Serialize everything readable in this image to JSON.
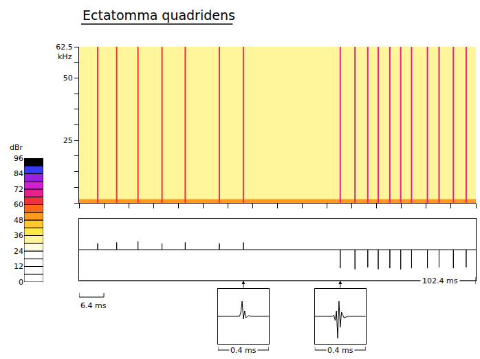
{
  "chart_data": {
    "type": "spectrogram",
    "title": "Ectatomma quadridens",
    "y_label": "kHz",
    "xlim": [
      0,
      102.4
    ],
    "xticks": [
      0,
      6.4,
      12.8,
      19.2,
      25.6,
      32,
      38.4,
      44.8,
      51.2,
      57.6,
      64,
      70.4,
      76.8,
      83.2,
      89.6,
      96,
      102.4
    ],
    "ylim": [
      0,
      62.5
    ],
    "yticks": [
      25,
      50,
      62.5
    ],
    "yminor_ticks": [
      0,
      6.25,
      12.5,
      18.75,
      31.25,
      37.5,
      43.75,
      56.25
    ],
    "tick_labels": "y",
    "clicks_ms": [
      4.8,
      9.7,
      15.2,
      21.4,
      27.4,
      36.2,
      42.4,
      67.4,
      71.2,
      74.5,
      77.2,
      80.2,
      83.0,
      85.8,
      89.9,
      92.9,
      96.6,
      99.9
    ],
    "levels_dBr": [
      60,
      60,
      60,
      60,
      60,
      60,
      60,
      66,
      66,
      66,
      66,
      66,
      66,
      66,
      66,
      66,
      66,
      66
    ],
    "background_level_dBr": 30,
    "low_band": {
      "top_khz": 1.5,
      "level_dBr": 48
    },
    "color_scale": {
      "label": "dBr",
      "bands": [
        0,
        6,
        12,
        18,
        24,
        30,
        36,
        42,
        48,
        54,
        60,
        66,
        72,
        78,
        84,
        90,
        96
      ],
      "colors": [
        "#ffffff",
        "#ffffff",
        "#ffffff",
        "#ffffff",
        "#fffde0",
        "#fff59a",
        "#ffe84a",
        "#ffc830",
        "#ff9a20",
        "#ff6a1a",
        "#f0303a",
        "#e8208c",
        "#d020d0",
        "#9a20e0",
        "#3a3af0",
        "#000000"
      ],
      "ylim": [
        0,
        96
      ],
      "yticks": [
        0,
        12,
        24,
        36,
        48,
        60,
        72,
        84,
        96
      ]
    },
    "waveform": {
      "ylim": [
        -1.5,
        1.5
      ],
      "amplitudes": [
        0.3,
        0.35,
        0.4,
        0.3,
        0.35,
        0.3,
        0.35,
        -0.9,
        -0.95,
        -0.85,
        -0.95,
        -0.9,
        -0.95,
        -0.9,
        -0.9,
        -0.85,
        -0.9,
        -0.85
      ],
      "color": "#000000"
    },
    "duration": {
      "value": 102.4,
      "label": "102.4 ms"
    },
    "scale_bar": {
      "value": 6.4,
      "label": "6.4 ms"
    },
    "insets": [
      {
        "at_ms": 42.4,
        "label": "0.4 ms",
        "xlim": [
          0,
          0.4
        ],
        "ylim": [
          -1,
          1
        ],
        "x": [
          0,
          0.17,
          0.18,
          0.19,
          0.2,
          0.21,
          0.22,
          0.24,
          0.26,
          0.4
        ],
        "y": [
          0,
          0,
          0.15,
          0.55,
          -0.1,
          0.2,
          -0.05,
          0.03,
          0,
          0
        ]
      },
      {
        "at_ms": 67.4,
        "label": "0.4 ms",
        "xlim": [
          0,
          0.4
        ],
        "ylim": [
          -1,
          1
        ],
        "x": [
          0,
          0.14,
          0.15,
          0.16,
          0.17,
          0.18,
          0.19,
          0.2,
          0.21,
          0.23,
          0.26,
          0.4
        ],
        "y": [
          0,
          0,
          0.05,
          -0.15,
          0.2,
          -0.8,
          0.55,
          -0.4,
          0.15,
          -0.05,
          0,
          0
        ]
      }
    ]
  }
}
